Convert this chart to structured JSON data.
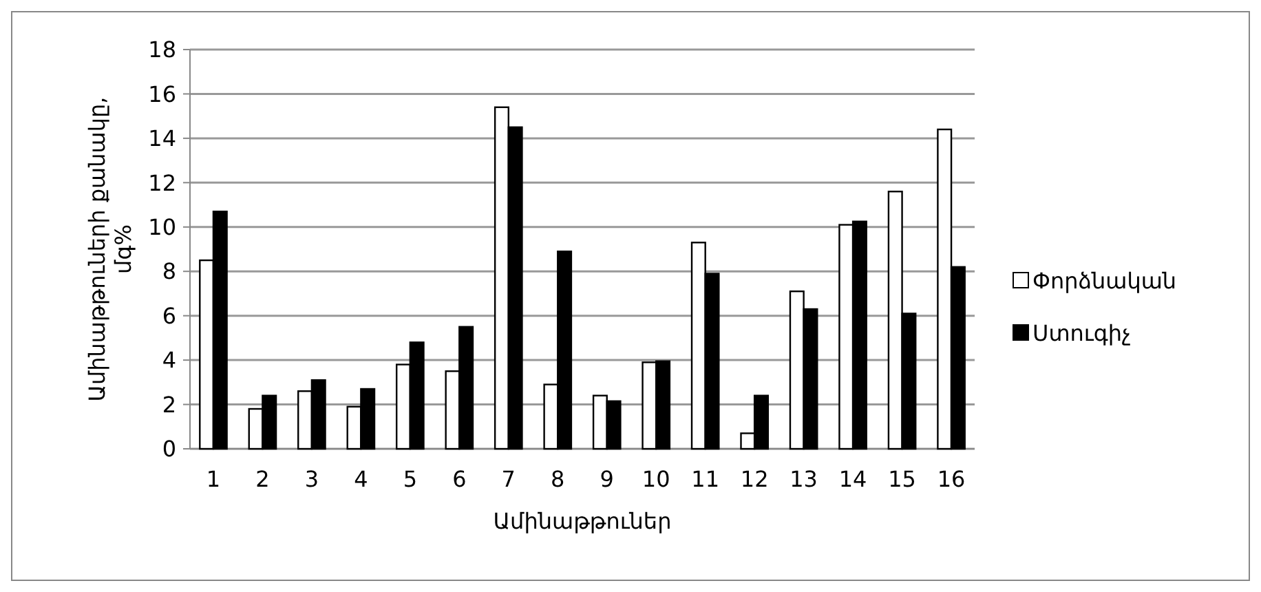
{
  "chart_data": {
    "type": "bar",
    "xlabel": "Ամինաթթուներ",
    "ylabel": "Ամինաթթուների քանակը, մգ%",
    "categories": [
      "1",
      "2",
      "3",
      "4",
      "5",
      "6",
      "7",
      "8",
      "9",
      "10",
      "11",
      "12",
      "13",
      "14",
      "15",
      "16"
    ],
    "series": [
      {
        "name": "Փորձնական",
        "color": "#ffffff",
        "values": [
          8.5,
          1.8,
          2.6,
          1.9,
          3.8,
          3.5,
          15.4,
          2.9,
          2.4,
          3.9,
          9.3,
          0.7,
          7.1,
          10.1,
          11.6,
          14.4
        ]
      },
      {
        "name": "Ստուգիչ",
        "color": "#000000",
        "values": [
          10.7,
          2.4,
          3.1,
          2.7,
          4.8,
          5.5,
          14.5,
          8.9,
          2.15,
          3.95,
          7.9,
          2.4,
          6.3,
          10.25,
          6.1,
          8.2
        ]
      }
    ],
    "ylim": [
      0,
      18
    ],
    "yticks": [
      0,
      2,
      4,
      6,
      8,
      10,
      12,
      14,
      16,
      18
    ],
    "grid": "y",
    "legend": "right"
  }
}
